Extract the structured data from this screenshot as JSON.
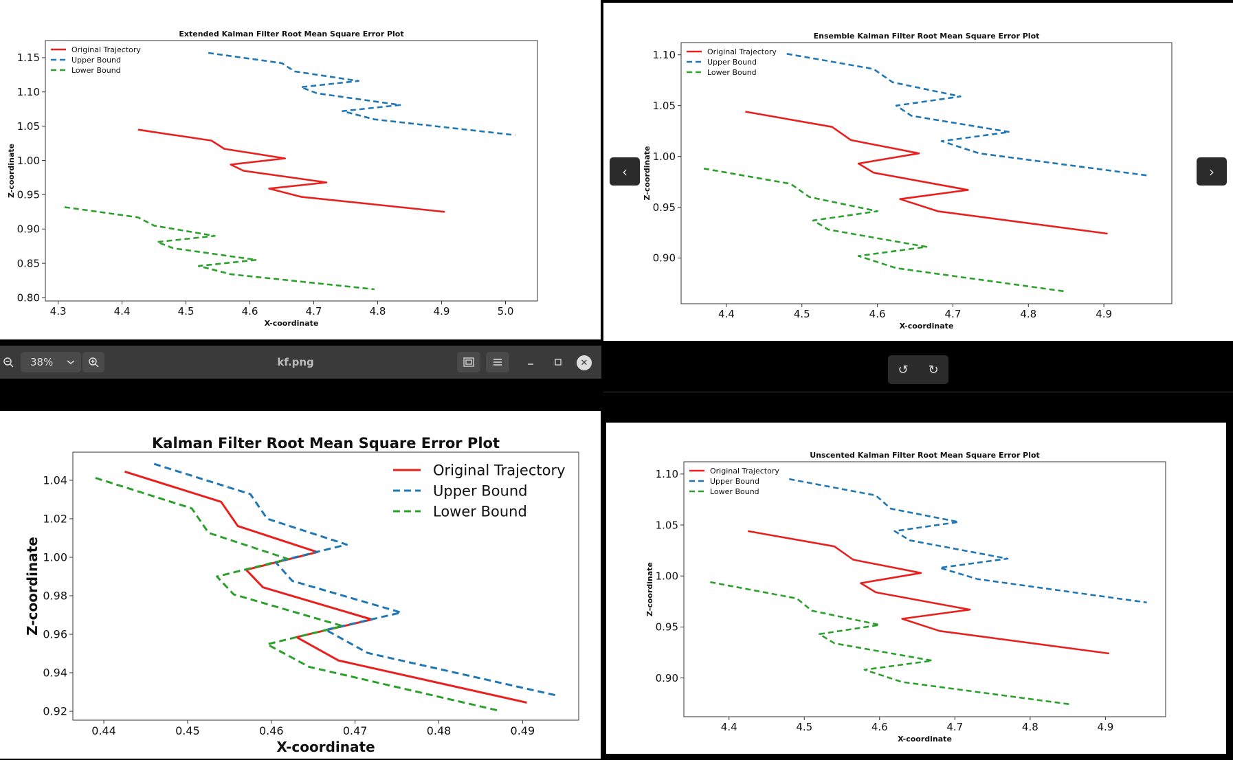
{
  "viewer": {
    "zoom_value": "38%",
    "file_name": "kf.png",
    "zoom_out_icon": "zoom-out-icon",
    "zoom_in_icon": "zoom-in-icon",
    "dropdown_icon": "chevron-down-icon",
    "fit_icon": "fit-window-icon",
    "menu_icon": "hamburger-menu-icon",
    "minimize_icon": "minimize-icon",
    "maximize_icon": "maximize-icon",
    "close_icon": "close-icon",
    "prev_icon": "chevron-left-icon",
    "next_icon": "chevron-right-icon",
    "rotate_left_icon": "rotate-left-icon",
    "rotate_right_icon": "rotate-right-icon"
  },
  "colors": {
    "original": "#e8201e",
    "upper": "#1f77b4",
    "lower": "#2ca02c"
  },
  "chart_data": [
    {
      "id": "ekf",
      "type": "line",
      "title": "Extended Kalman Filter Root Mean Square Error Plot",
      "xlabel": "X-coordinate",
      "ylabel": "Z-coordinate",
      "xlim": [
        4.28,
        5.05
      ],
      "ylim": [
        0.795,
        1.175
      ],
      "xticks": [
        "4.3",
        "4.4",
        "4.5",
        "4.6",
        "4.7",
        "4.8",
        "4.9",
        "5.0"
      ],
      "yticks": [
        "0.80",
        "0.85",
        "0.90",
        "0.95",
        "1.00",
        "1.05",
        "1.10",
        "1.15"
      ],
      "legend": "top-left",
      "series": [
        {
          "name": "Original Trajectory",
          "style": "solid",
          "color": "#e8201e",
          "points": [
            [
              4.425,
              1.045
            ],
            [
              4.54,
              1.029
            ],
            [
              4.56,
              1.017
            ],
            [
              4.655,
              1.003
            ],
            [
              4.57,
              0.994
            ],
            [
              4.59,
              0.985
            ],
            [
              4.72,
              0.968
            ],
            [
              4.63,
              0.959
            ],
            [
              4.68,
              0.947
            ],
            [
              4.905,
              0.925
            ]
          ]
        },
        {
          "name": "Upper Bound",
          "style": "dashed",
          "color": "#1f77b4",
          "points": [
            [
              4.535,
              1.157
            ],
            [
              4.65,
              1.142
            ],
            [
              4.67,
              1.13
            ],
            [
              4.77,
              1.116
            ],
            [
              4.68,
              1.107
            ],
            [
              4.705,
              1.098
            ],
            [
              4.835,
              1.081
            ],
            [
              4.745,
              1.072
            ],
            [
              4.795,
              1.06
            ],
            [
              5.015,
              1.037
            ]
          ]
        },
        {
          "name": "Lower Bound",
          "style": "dashed",
          "color": "#2ca02c",
          "points": [
            [
              4.31,
              0.932
            ],
            [
              4.425,
              0.917
            ],
            [
              4.45,
              0.905
            ],
            [
              4.545,
              0.89
            ],
            [
              4.455,
              0.881
            ],
            [
              4.48,
              0.872
            ],
            [
              4.61,
              0.855
            ],
            [
              4.52,
              0.846
            ],
            [
              4.57,
              0.834
            ],
            [
              4.795,
              0.812
            ]
          ]
        }
      ]
    },
    {
      "id": "enkf",
      "type": "line",
      "title": "Ensemble Kalman Filter Root Mean Square Error Plot",
      "xlabel": "X-coordinate",
      "ylabel": "Z-coordinate",
      "xlim": [
        4.34,
        4.99
      ],
      "ylim": [
        0.855,
        1.112
      ],
      "xticks": [
        "4.4",
        "4.5",
        "4.6",
        "4.7",
        "4.8",
        "4.9"
      ],
      "yticks": [
        "0.90",
        "0.95",
        "1.00",
        "1.05",
        "1.10"
      ],
      "legend": "top-left",
      "series": [
        {
          "name": "Original Trajectory",
          "style": "solid",
          "color": "#e8201e",
          "points": [
            [
              4.425,
              1.044
            ],
            [
              4.54,
              1.029
            ],
            [
              4.565,
              1.016
            ],
            [
              4.655,
              1.003
            ],
            [
              4.575,
              0.993
            ],
            [
              4.595,
              0.984
            ],
            [
              4.72,
              0.967
            ],
            [
              4.63,
              0.958
            ],
            [
              4.68,
              0.946
            ],
            [
              4.905,
              0.924
            ]
          ]
        },
        {
          "name": "Upper Bound",
          "style": "dashed",
          "color": "#1f77b4",
          "points": [
            [
              4.48,
              1.101
            ],
            [
              4.595,
              1.086
            ],
            [
              4.62,
              1.073
            ],
            [
              4.71,
              1.059
            ],
            [
              4.625,
              1.05
            ],
            [
              4.645,
              1.04
            ],
            [
              4.775,
              1.024
            ],
            [
              4.685,
              1.015
            ],
            [
              4.735,
              1.003
            ],
            [
              4.96,
              0.981
            ]
          ]
        },
        {
          "name": "Lower Bound",
          "style": "dashed",
          "color": "#2ca02c",
          "points": [
            [
              4.37,
              0.988
            ],
            [
              4.485,
              0.973
            ],
            [
              4.51,
              0.96
            ],
            [
              4.6,
              0.946
            ],
            [
              4.515,
              0.937
            ],
            [
              4.535,
              0.928
            ],
            [
              4.665,
              0.911
            ],
            [
              4.575,
              0.902
            ],
            [
              4.625,
              0.89
            ],
            [
              4.85,
              0.867
            ]
          ]
        }
      ]
    },
    {
      "id": "kf",
      "type": "line",
      "title": "Kalman Filter Root Mean Square Error Plot",
      "xlabel": "X-coordinate",
      "ylabel": "Z-coordinate",
      "xlim": [
        0.4363,
        0.4967
      ],
      "ylim": [
        0.9154,
        1.0546
      ],
      "xticks": [
        "0.44",
        "0.45",
        "0.46",
        "0.47",
        "0.48",
        "0.49"
      ],
      "yticks": [
        "0.92",
        "0.94",
        "0.96",
        "0.98",
        "1.00",
        "1.02",
        "1.04"
      ],
      "legend": "top-right",
      "series": [
        {
          "name": "Original Trajectory",
          "style": "solid",
          "color": "#e8201e",
          "points": [
            [
              0.4425,
              1.0445
            ],
            [
              0.454,
              1.0288
            ],
            [
              0.456,
              1.0162
            ],
            [
              0.4655,
              1.0027
            ],
            [
              0.457,
              0.9935
            ],
            [
              0.459,
              0.9844
            ],
            [
              0.472,
              0.9677
            ],
            [
              0.463,
              0.9585
            ],
            [
              0.468,
              0.9464
            ],
            [
              0.4905,
              0.9245
            ]
          ]
        },
        {
          "name": "Upper Bound",
          "style": "dashed",
          "color": "#1f77b4",
          "points": [
            [
              0.446,
              1.0485
            ],
            [
              0.4575,
              1.0328
            ],
            [
              0.4595,
              1.02
            ],
            [
              0.469,
              1.0066
            ],
            [
              0.4605,
              0.9975
            ],
            [
              0.4625,
              0.9877
            ],
            [
              0.4755,
              0.9713
            ],
            [
              0.4665,
              0.9623
            ],
            [
              0.4715,
              0.9503
            ],
            [
              0.494,
              0.9283
            ]
          ]
        },
        {
          "name": "Lower Bound",
          "style": "dashed",
          "color": "#2ca02c",
          "points": [
            [
              0.439,
              1.0412
            ],
            [
              0.4505,
              1.0254
            ],
            [
              0.4525,
              1.0127
            ],
            [
              0.462,
              0.9991
            ],
            [
              0.4535,
              0.99
            ],
            [
              0.4555,
              0.9807
            ],
            [
              0.4685,
              0.9643
            ],
            [
              0.4595,
              0.9548
            ],
            [
              0.4645,
              0.9431
            ],
            [
              0.487,
              0.9205
            ]
          ]
        }
      ]
    },
    {
      "id": "ukf",
      "type": "line",
      "title": "Unscented Kalman Filter Root Mean Square Error Plot",
      "xlabel": "X-coordinate",
      "ylabel": "Z-coordinate",
      "xlim": [
        4.34,
        4.98
      ],
      "ylim": [
        0.862,
        1.112
      ],
      "xticks": [
        "4.4",
        "4.5",
        "4.6",
        "4.7",
        "4.8",
        "4.9"
      ],
      "yticks": [
        "0.90",
        "0.95",
        "1.00",
        "1.05",
        "1.10"
      ],
      "legend": "top-left",
      "series": [
        {
          "name": "Original Trajectory",
          "style": "solid",
          "color": "#e8201e",
          "points": [
            [
              4.425,
              1.044
            ],
            [
              4.54,
              1.029
            ],
            [
              4.565,
              1.016
            ],
            [
              4.655,
              1.003
            ],
            [
              4.575,
              0.993
            ],
            [
              4.595,
              0.984
            ],
            [
              4.72,
              0.967
            ],
            [
              4.63,
              0.958
            ],
            [
              4.68,
              0.946
            ],
            [
              4.905,
              0.924
            ]
          ]
        },
        {
          "name": "Upper Bound",
          "style": "dashed",
          "color": "#1f77b4",
          "points": [
            [
              4.48,
              1.095
            ],
            [
              4.595,
              1.079
            ],
            [
              4.615,
              1.066
            ],
            [
              4.705,
              1.053
            ],
            [
              4.62,
              1.044
            ],
            [
              4.64,
              1.035
            ],
            [
              4.77,
              1.017
            ],
            [
              4.68,
              1.008
            ],
            [
              4.73,
              0.997
            ],
            [
              4.955,
              0.974
            ]
          ]
        },
        {
          "name": "Lower Bound",
          "style": "dashed",
          "color": "#2ca02c",
          "points": [
            [
              4.375,
              0.994
            ],
            [
              4.49,
              0.978
            ],
            [
              4.51,
              0.966
            ],
            [
              4.6,
              0.952
            ],
            [
              4.52,
              0.943
            ],
            [
              4.54,
              0.934
            ],
            [
              4.67,
              0.917
            ],
            [
              4.58,
              0.908
            ],
            [
              4.63,
              0.896
            ],
            [
              4.855,
              0.874
            ]
          ]
        }
      ]
    }
  ]
}
